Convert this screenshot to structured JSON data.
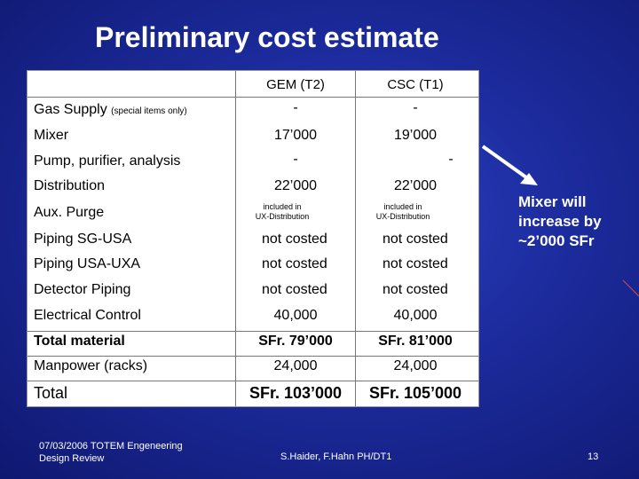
{
  "slide": {
    "title": "Preliminary cost estimate",
    "note": "Mixer will increase by ~2’000 SFr",
    "footer_left_line1": "07/03/2006  TOTEM Engeneering",
    "footer_left_line2": "Design Review",
    "footer_center": "S.Haider, F.Hahn  PH/DT1",
    "page_number": "13"
  },
  "table": {
    "col1_header": "GEM (T2)",
    "col2_header": "CSC (T1)",
    "rows": [
      {
        "label": "Gas Supply",
        "label_note": "(special items only)",
        "v1": "-",
        "v2": "-"
      },
      {
        "label": "Mixer",
        "v1": "17’000",
        "v2": "19’000"
      },
      {
        "label": "Pump, purifier, analysis",
        "v1": "-",
        "v2": "-"
      },
      {
        "label": "Distribution",
        "v1": "22’000",
        "v2": "22’000"
      },
      {
        "label": "Aux. Purge",
        "v1_line1": "included in",
        "v1_line2": "UX-Distribution",
        "v2_line1": "included in",
        "v2_line2": "UX-Distribution"
      },
      {
        "label": "Piping SG-USA",
        "v1": "not costed",
        "v2": "not costed"
      },
      {
        "label": "Piping USA-UXA",
        "v1": "not costed",
        "v2": "not costed"
      },
      {
        "label": "Detector Piping",
        "v1": "not costed",
        "v2": "not costed"
      },
      {
        "label": "Electrical Control",
        "v1": "40,000",
        "v2": "40,000"
      },
      {
        "label": "Total material",
        "v1": "SFr. 79’000",
        "v2": "SFr. 81’000"
      },
      {
        "label": "Manpower (racks)",
        "v1": "24,000",
        "v2": "24,000"
      },
      {
        "label": "Total",
        "v1": "SFr. 103’000",
        "v2": "SFr. 105’000"
      }
    ]
  },
  "colors": {
    "background": "#1c2b9c",
    "arrow": "#ffffff",
    "accent_line": "#d05050"
  }
}
